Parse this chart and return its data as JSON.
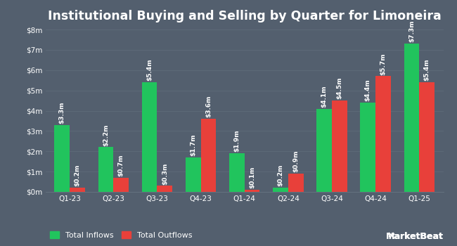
{
  "title": "Institutional Buying and Selling by Quarter for Limoneira",
  "quarters": [
    "Q1-23",
    "Q2-23",
    "Q3-23",
    "Q4-23",
    "Q1-24",
    "Q2-24",
    "Q3-24",
    "Q4-24",
    "Q1-25"
  ],
  "inflows": [
    3.3,
    2.2,
    5.4,
    1.7,
    1.9,
    0.2,
    4.1,
    4.4,
    7.3
  ],
  "outflows": [
    0.2,
    0.7,
    0.3,
    3.6,
    0.1,
    0.9,
    4.5,
    5.7,
    5.4
  ],
  "inflow_labels": [
    "$3.3m",
    "$2.2m",
    "$5.4m",
    "$1.7m",
    "$1.9m",
    "$0.2m",
    "$4.1m",
    "$4.4m",
    "$7.3m"
  ],
  "outflow_labels": [
    "$0.2m",
    "$0.7m",
    "$0.3m",
    "$3.6m",
    "$0.1m",
    "$0.9m",
    "$4.5m",
    "$5.7m",
    "$5.4m"
  ],
  "inflow_color": "#21c45d",
  "outflow_color": "#e8403a",
  "bg_color": "#535f6e",
  "plot_bg_color": "#535f6e",
  "text_color": "#ffffff",
  "grid_color": "#64717e",
  "ylim": [
    0,
    8
  ],
  "yticks": [
    0,
    1,
    2,
    3,
    4,
    5,
    6,
    7,
    8
  ],
  "ytick_labels": [
    "$0m",
    "$1m",
    "$2m",
    "$3m",
    "$4m",
    "$5m",
    "$6m",
    "$7m",
    "$8m"
  ],
  "legend_inflow": "Total Inflows",
  "legend_outflow": "Total Outflows",
  "title_fontsize": 12.5,
  "label_fontsize": 6.5,
  "tick_fontsize": 7.5,
  "legend_fontsize": 8,
  "bar_width": 0.35
}
